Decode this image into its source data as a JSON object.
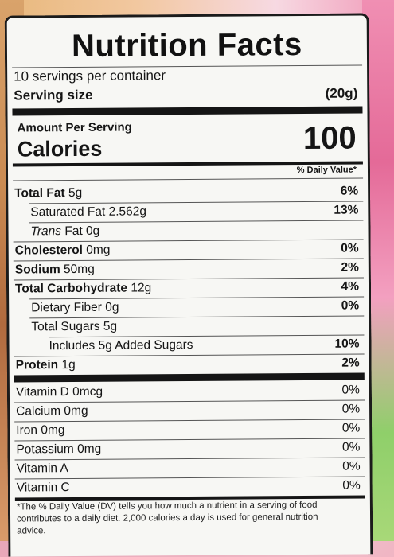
{
  "title": "Nutrition Facts",
  "servings_per_container": "10 servings per container",
  "serving_size_label": "Serving size",
  "serving_size_value": "(20g)",
  "amount_per_serving": "Amount Per Serving",
  "calories_label": "Calories",
  "calories_value": "100",
  "daily_value_header": "% Daily Value*",
  "nutrients": [
    {
      "label": "Total Fat",
      "amount": "5g",
      "dv": "6%"
    },
    {
      "label": "Saturated Fat",
      "amount": "2.562g",
      "dv": "13%"
    },
    {
      "label": "Trans",
      "label_rest": "Fat 0g",
      "dv": ""
    },
    {
      "label": "Cholesterol",
      "amount": "0mg",
      "dv": "0%"
    },
    {
      "label": "Sodium",
      "amount": "50mg",
      "dv": "2%"
    },
    {
      "label": "Total Carbohydrate",
      "amount": "12g",
      "dv": "4%"
    },
    {
      "label": "Dietary Fiber",
      "amount": "0g",
      "dv": "0%"
    },
    {
      "label": "Total Sugars",
      "amount": "5g",
      "dv": ""
    },
    {
      "label": "Includes 5g Added Sugars",
      "dv": "10%"
    },
    {
      "label": "Protein",
      "amount": "1g",
      "dv": "2%"
    }
  ],
  "vitamins": [
    {
      "label": "Vitamin D 0mcg",
      "dv": "0%"
    },
    {
      "label": "Calcium 0mg",
      "dv": "0%"
    },
    {
      "label": "Iron 0mg",
      "dv": "0%"
    },
    {
      "label": "Potassium 0mg",
      "dv": "0%"
    },
    {
      "label": "Vitamin A",
      "dv": "0%"
    },
    {
      "label": "Vitamin C",
      "dv": "0%"
    }
  ],
  "footnote": "*The % Daily Value (DV) tells you how much a nutrient in a serving of food contributes to a daily diet. 2,000 calories a day is used for general nutrition advice."
}
